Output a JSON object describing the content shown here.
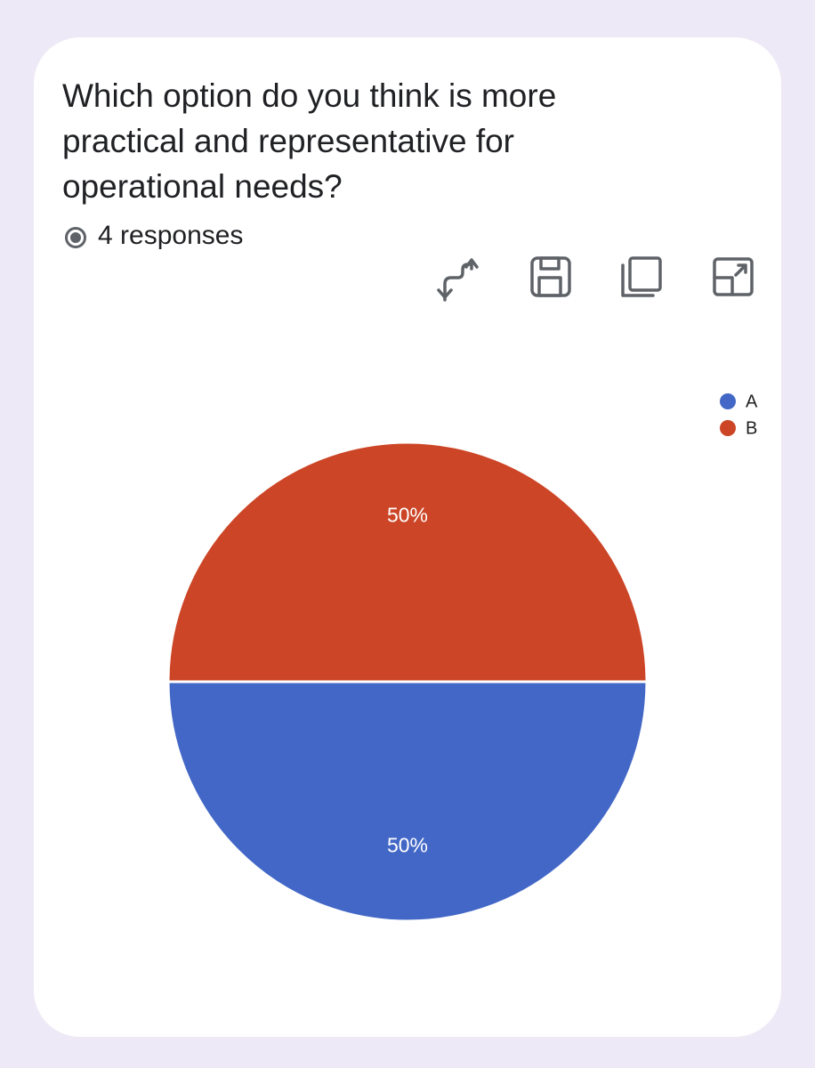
{
  "header": {
    "title": "Which option do you think is more practical and representative for operational needs?",
    "responses": "4 responses"
  },
  "chart_data": {
    "type": "pie",
    "categories": [
      "A",
      "B"
    ],
    "values": [
      50,
      50
    ],
    "value_labels": [
      "50%",
      "50%"
    ],
    "colors": [
      "#4267c6",
      "#cc4526"
    ],
    "legend": "top-right"
  }
}
